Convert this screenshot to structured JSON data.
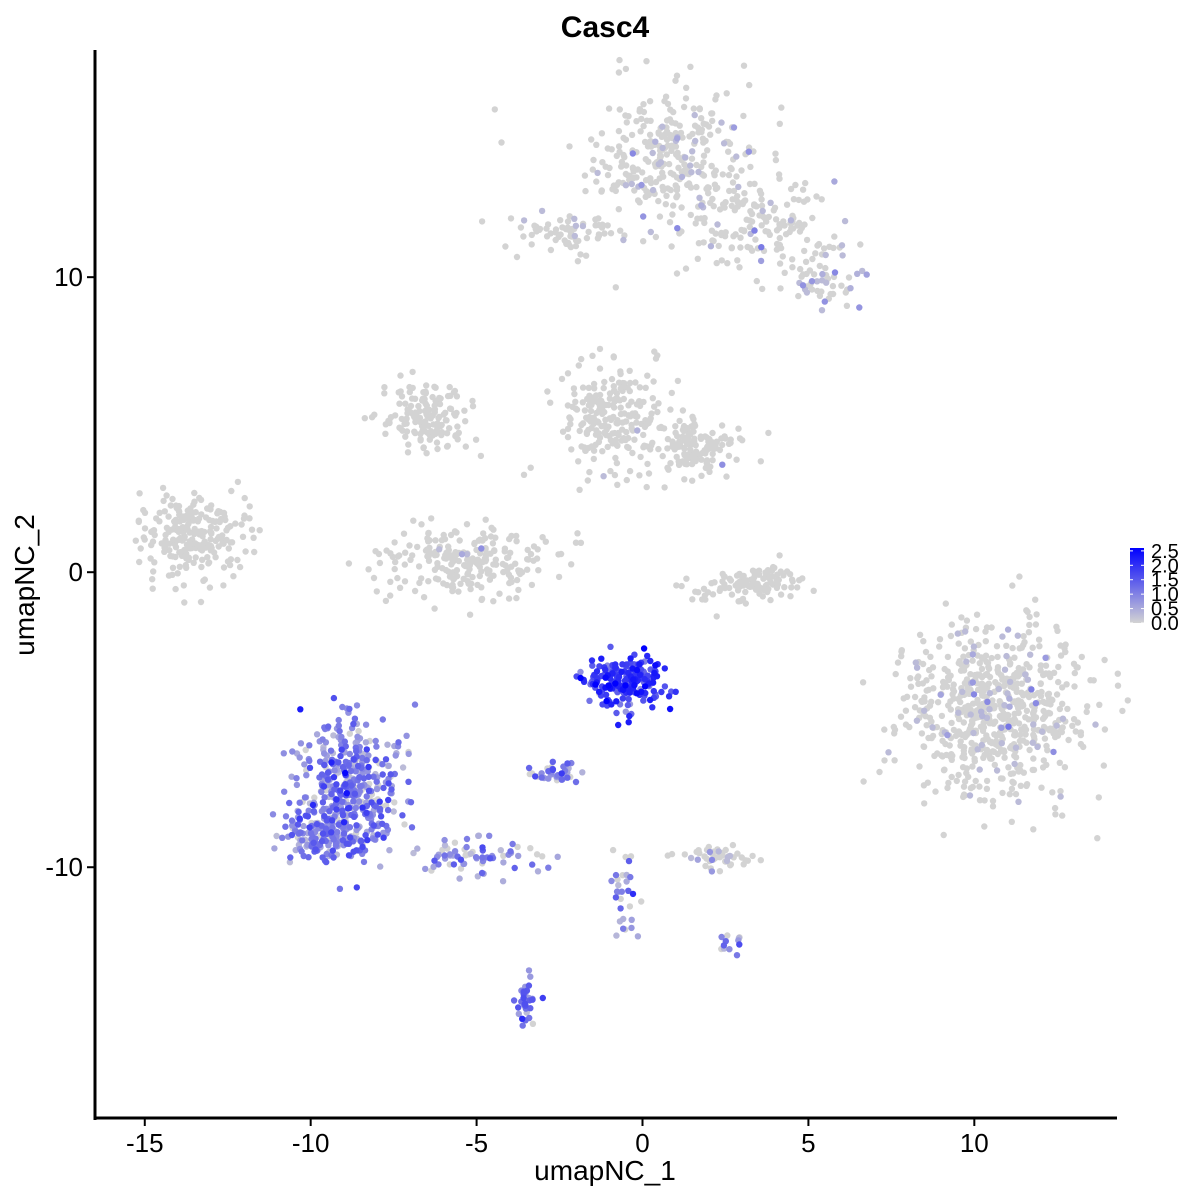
{
  "chart_data": {
    "type": "scatter",
    "title": "Casc4",
    "xlabel": "umapNC_1",
    "ylabel": "umapNC_2",
    "xlim": [
      -16.5,
      14.3
    ],
    "ylim": [
      -18.5,
      17.7
    ],
    "xticks": [
      -15,
      -10,
      -5,
      0,
      5,
      10
    ],
    "xtick_labels": [
      "-15",
      "-10",
      "-5",
      "0",
      "5",
      "10"
    ],
    "yticks": [
      -10,
      0,
      10
    ],
    "ytick_labels": [
      "-10",
      "0",
      "10"
    ],
    "grid": false,
    "legend": {
      "placement": "right",
      "title": "",
      "color_low": "#d3d3d3",
      "color_high": "#0000ff",
      "ticks": [
        "2.5",
        "2.0",
        "1.5",
        "1.0",
        "0.5",
        "0.0"
      ],
      "tick_values": [
        2.5,
        2.0,
        1.5,
        1.0,
        0.5,
        0.0
      ],
      "min": 0.0,
      "max": 2.6
    },
    "point_color_low": "#d3d3d3",
    "point_color_high": "#0000ff",
    "clusters": [
      {
        "cx": 1.0,
        "cy": 14.0,
        "sx": 1.3,
        "sy": 1.2,
        "n": 320,
        "expr_mean": 0.1,
        "expr_frac": 0.12
      },
      {
        "cx": 3.6,
        "cy": 11.8,
        "sx": 1.1,
        "sy": 0.8,
        "n": 140,
        "expr_mean": 0.1,
        "expr_frac": 0.1
      },
      {
        "cx": 5.3,
        "cy": 10.2,
        "sx": 0.5,
        "sy": 0.6,
        "n": 60,
        "expr_mean": 0.3,
        "expr_frac": 0.25
      },
      {
        "cx": -2.5,
        "cy": 11.5,
        "sx": 0.8,
        "sy": 0.35,
        "n": 70,
        "expr_mean": 0.05,
        "expr_frac": 0.08
      },
      {
        "cx": -13.5,
        "cy": 1.2,
        "sx": 0.8,
        "sy": 0.8,
        "n": 230,
        "expr_mean": 0.0,
        "expr_frac": 0.0
      },
      {
        "cx": -6.5,
        "cy": 5.3,
        "sx": 0.7,
        "sy": 0.6,
        "n": 150,
        "expr_mean": 0.0,
        "expr_frac": 0.0
      },
      {
        "cx": -1.0,
        "cy": 5.2,
        "sx": 0.8,
        "sy": 0.9,
        "n": 220,
        "expr_mean": 0.02,
        "expr_frac": 0.02
      },
      {
        "cx": 1.6,
        "cy": 4.2,
        "sx": 0.8,
        "sy": 0.5,
        "n": 140,
        "expr_mean": 0.02,
        "expr_frac": 0.02
      },
      {
        "cx": -5.3,
        "cy": 0.3,
        "sx": 1.2,
        "sy": 0.6,
        "n": 230,
        "expr_mean": 0.02,
        "expr_frac": 0.02
      },
      {
        "cx": 3.4,
        "cy": -0.4,
        "sx": 0.9,
        "sy": 0.35,
        "n": 110,
        "expr_mean": 0.0,
        "expr_frac": 0.0
      },
      {
        "cx": 10.6,
        "cy": -4.7,
        "sx": 1.3,
        "sy": 1.4,
        "n": 700,
        "expr_mean": 0.15,
        "expr_frac": 0.12
      },
      {
        "cx": -0.6,
        "cy": -3.7,
        "sx": 0.55,
        "sy": 0.45,
        "n": 210,
        "expr_mean": 1.8,
        "expr_frac": 0.97
      },
      {
        "cx": -8.8,
        "cy": -7.3,
        "sx": 0.8,
        "sy": 1.1,
        "n": 420,
        "expr_mean": 1.0,
        "expr_frac": 0.9
      },
      {
        "cx": -9.7,
        "cy": -9.0,
        "sx": 0.7,
        "sy": 0.5,
        "n": 140,
        "expr_mean": 1.0,
        "expr_frac": 0.9
      },
      {
        "cx": -5.0,
        "cy": -9.6,
        "sx": 0.9,
        "sy": 0.35,
        "n": 70,
        "expr_mean": 0.9,
        "expr_frac": 0.8
      },
      {
        "cx": -2.6,
        "cy": -6.8,
        "sx": 0.3,
        "sy": 0.15,
        "n": 40,
        "expr_mean": 1.0,
        "expr_frac": 0.8
      },
      {
        "cx": 2.3,
        "cy": -9.6,
        "sx": 0.5,
        "sy": 0.2,
        "n": 50,
        "expr_mean": 0.2,
        "expr_frac": 0.3
      },
      {
        "cx": -3.5,
        "cy": -14.5,
        "sx": 0.15,
        "sy": 0.4,
        "n": 35,
        "expr_mean": 1.0,
        "expr_frac": 0.8
      },
      {
        "cx": -0.5,
        "cy": -11.0,
        "sx": 0.2,
        "sy": 1.0,
        "n": 30,
        "expr_mean": 0.8,
        "expr_frac": 0.7
      },
      {
        "cx": 2.5,
        "cy": -12.5,
        "sx": 0.2,
        "sy": 0.2,
        "n": 12,
        "expr_mean": 0.8,
        "expr_frac": 0.8
      }
    ]
  }
}
